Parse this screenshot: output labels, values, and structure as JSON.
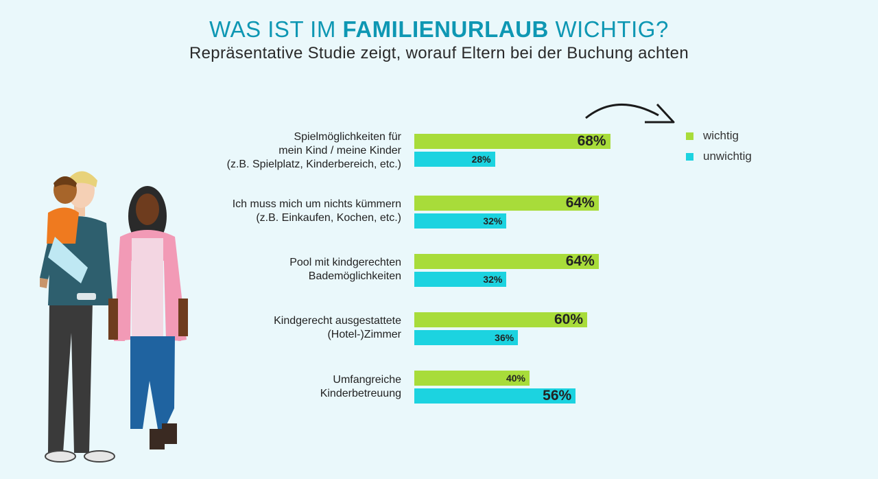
{
  "header": {
    "title_prefix": "WAS IST IM ",
    "title_bold": "FAMILIENURLAUB",
    "title_suffix": " WICHTIG?",
    "subtitle": "Repräsentative Studie zeigt, worauf Eltern bei der Buchung achten"
  },
  "legend": {
    "wichtig": "wichtig",
    "unwichtig": "unwichtig"
  },
  "colors": {
    "wichtig": "#a8dc3a",
    "unwichtig": "#1cd3e0",
    "title": "#0e97b3",
    "background": "#eaf8fb"
  },
  "categories_text": [
    [
      "Spielmöglichkeiten für",
      "mein Kind / meine Kinder",
      "(z.B. Spielplatz, Kinderbereich, etc.)"
    ],
    [
      "Ich muss mich um nichts kümmern",
      "(z.B. Einkaufen, Kochen, etc.)"
    ],
    [
      "Pool mit kindgerechten",
      "Bademöglichkeiten"
    ],
    [
      "Kindgerecht ausgestattete",
      "(Hotel-)Zimmer"
    ],
    [
      "Umfangreiche",
      "Kinderbetreuung"
    ]
  ],
  "chart_data": {
    "type": "bar",
    "orientation": "horizontal",
    "title": "WAS IST IM FAMILIENURLAUB WICHTIG?",
    "subtitle": "Repräsentative Studie zeigt, worauf Eltern bei der Buchung achten",
    "categories": [
      "Spielmöglichkeiten für mein Kind / meine Kinder (z.B. Spielplatz, Kinderbereich, etc.)",
      "Ich muss mich um nichts kümmern (z.B. Einkaufen, Kochen, etc.)",
      "Pool mit kindgerechten Bademöglichkeiten",
      "Kindgerecht ausgestattete (Hotel-)Zimmer",
      "Umfangreiche Kinderbetreuung"
    ],
    "series": [
      {
        "name": "wichtig",
        "values": [
          68,
          64,
          64,
          60,
          40
        ]
      },
      {
        "name": "unwichtig",
        "values": [
          28,
          32,
          32,
          36,
          56
        ]
      }
    ],
    "unit": "%",
    "legend_position": "top-right",
    "grid": false
  }
}
